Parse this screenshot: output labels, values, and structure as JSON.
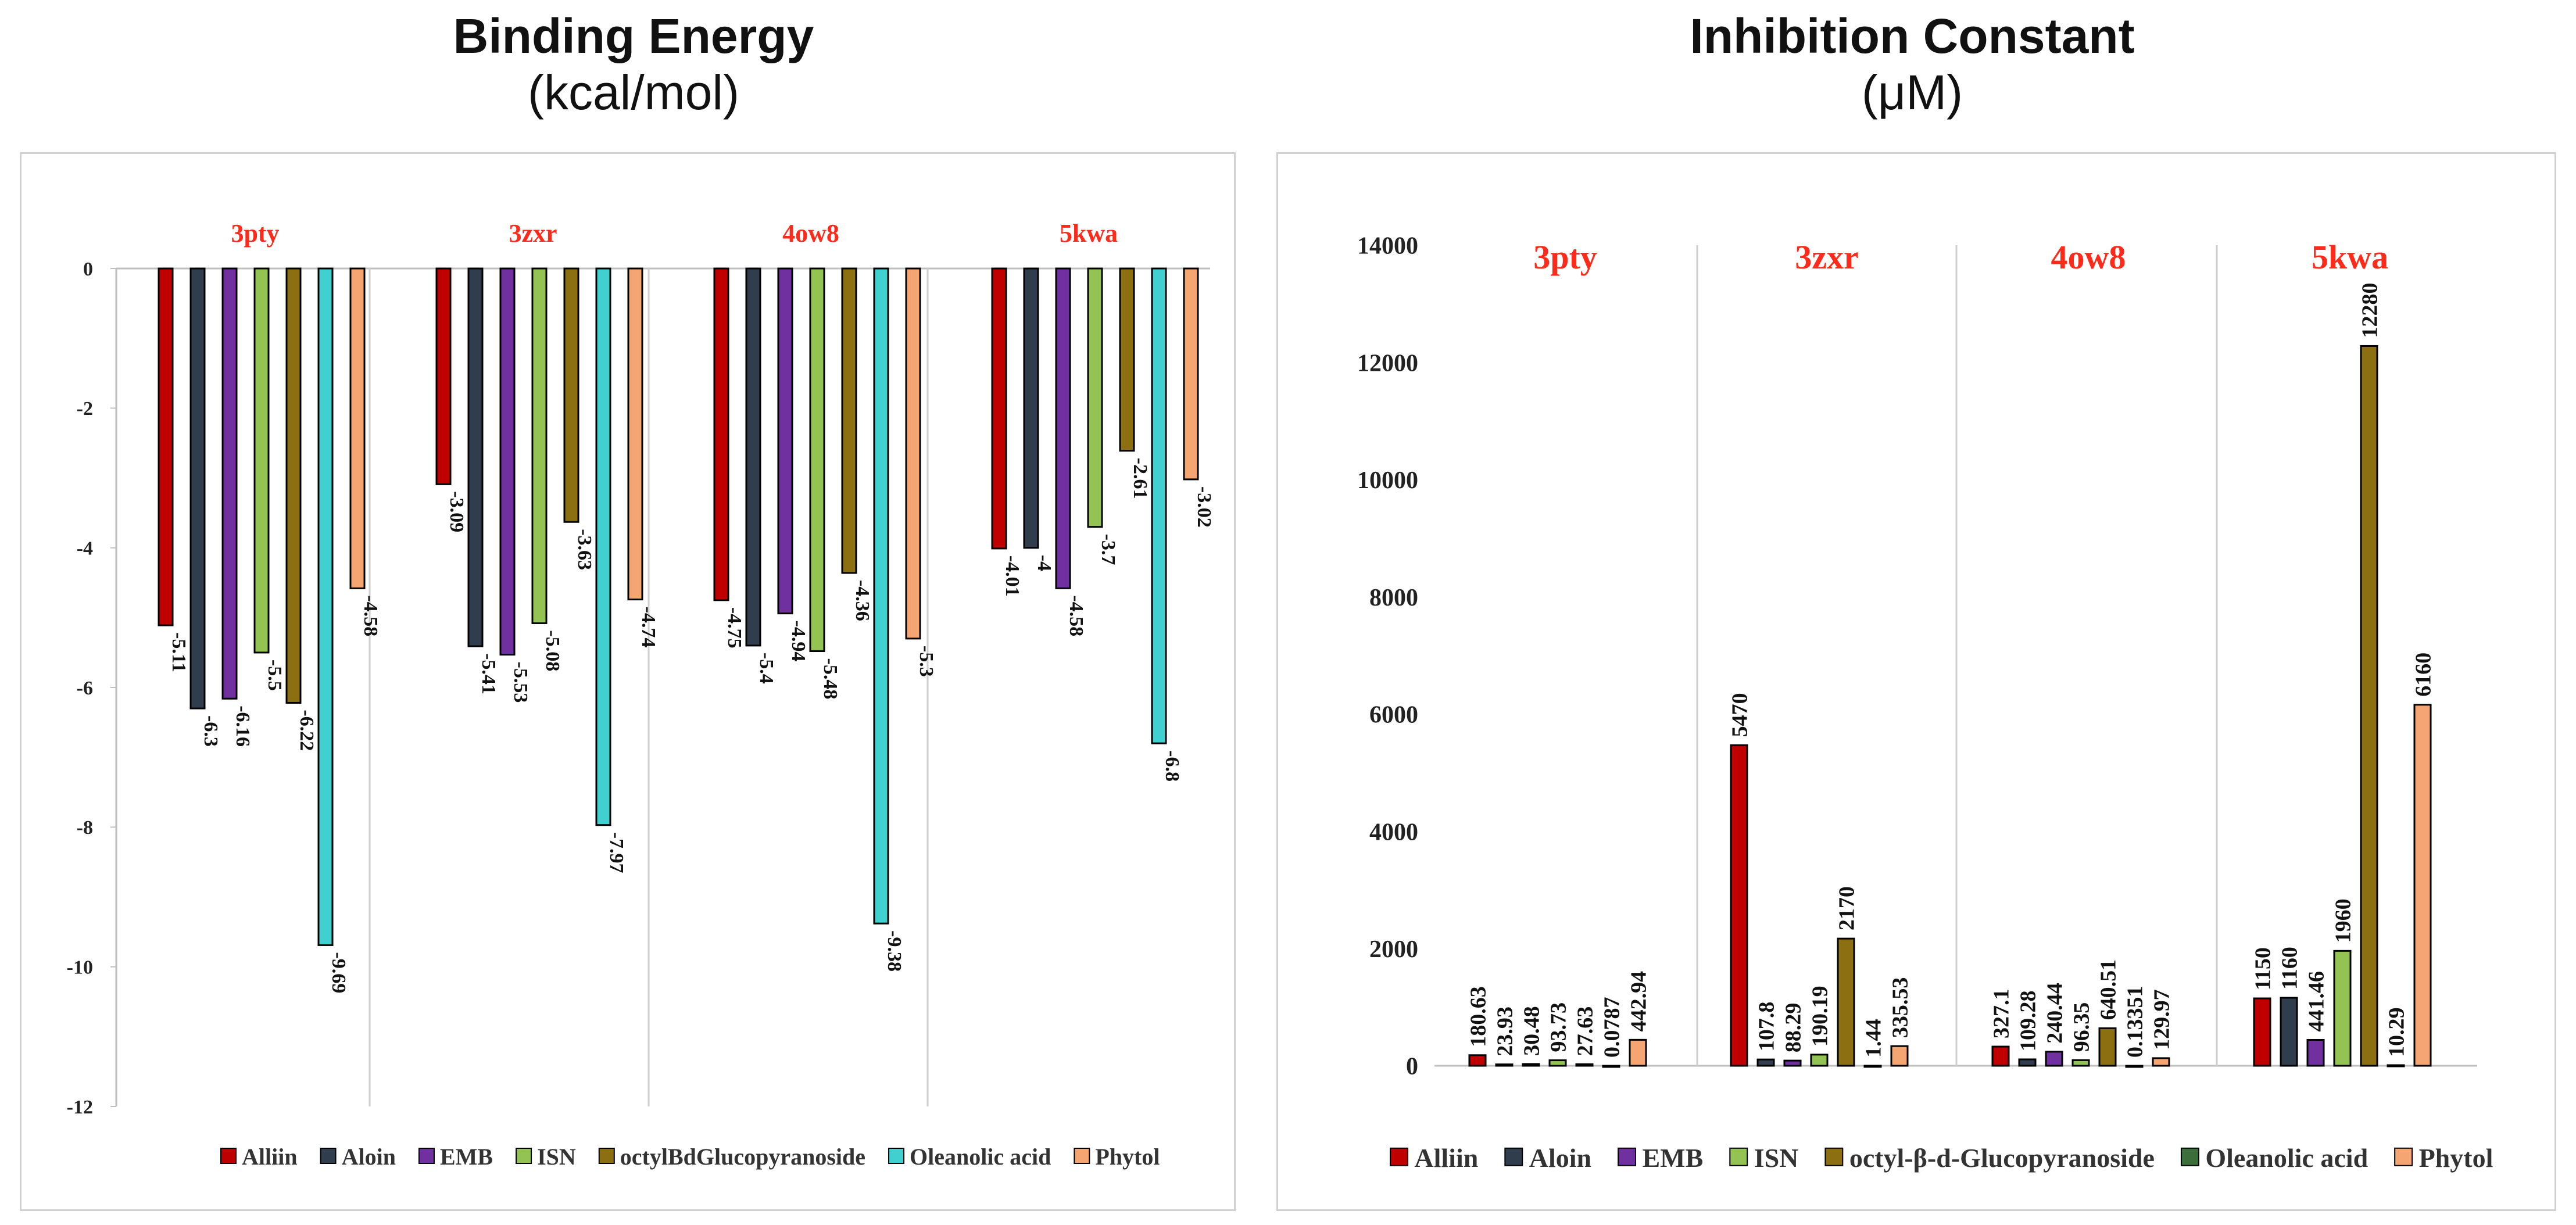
{
  "chart_data": [
    {
      "type": "bar",
      "title": "Binding Energy",
      "subtitle": "(kcal/mol)",
      "xlabel": "",
      "ylabel": "",
      "ylim": [
        -12,
        0
      ],
      "yticks": [
        0,
        -2,
        -4,
        -6,
        -8,
        -10,
        -12
      ],
      "groups": [
        "3pty",
        "3zxr",
        "4ow8",
        "5kwa"
      ],
      "legend_position": "bottom",
      "series": [
        {
          "name": "Alliin",
          "color": "#c00000",
          "values": [
            -5.11,
            -3.09,
            -4.75,
            -4.01
          ],
          "labels": [
            "-5.11",
            "-3.09",
            "-4.75",
            "-4.01"
          ]
        },
        {
          "name": "Aloin",
          "color": "#2f3d4c",
          "values": [
            -6.3,
            -5.41,
            -5.4,
            -4
          ],
          "labels": [
            "-6.3",
            "-5.41",
            "-5.4",
            "-4"
          ]
        },
        {
          "name": "EMB",
          "color": "#7030a0",
          "values": [
            -6.16,
            -5.53,
            -4.94,
            -4.58
          ],
          "labels": [
            "-6.16",
            "-5.53",
            "-4.94",
            "-4.58"
          ]
        },
        {
          "name": "ISN",
          "color": "#92c353",
          "values": [
            -5.5,
            -5.08,
            -5.48,
            -3.7
          ],
          "labels": [
            "-5.5",
            "-5.08",
            "-5.48",
            "-3.7"
          ]
        },
        {
          "name": "octylBdGlucopyranoside",
          "color": "#8b6f10",
          "values": [
            -6.22,
            -3.63,
            -4.36,
            -2.61
          ],
          "labels": [
            "-6.22",
            "-3.63",
            "-4.36",
            "-2.61"
          ]
        },
        {
          "name": "Oleanolic acid",
          "color": "#40d0d0",
          "values": [
            -9.69,
            -7.97,
            -9.38,
            -6.8
          ],
          "labels": [
            "-9.69",
            "-7.97",
            "-9.38",
            "-6.8"
          ]
        },
        {
          "name": "Phytol",
          "color": "#f4a571",
          "values": [
            -4.58,
            -4.74,
            -5.3,
            -3.02
          ],
          "labels": [
            "-4.58",
            "-4.74",
            "-5.3",
            "-3.02"
          ]
        }
      ]
    },
    {
      "type": "bar",
      "title": "Inhibition Constant",
      "subtitle": "(μM)",
      "xlabel": "",
      "ylabel": "",
      "ylim": [
        0,
        14000
      ],
      "yticks": [
        0,
        2000,
        4000,
        6000,
        8000,
        10000,
        12000,
        14000
      ],
      "groups": [
        "3pty",
        "3zxr",
        "4ow8",
        "5kwa"
      ],
      "legend_position": "bottom",
      "series": [
        {
          "name": "Alliin",
          "color": "#c00000",
          "values": [
            180.63,
            5470,
            327.1,
            1150
          ],
          "labels": [
            "180.63",
            "5470",
            "327.1",
            "1150"
          ]
        },
        {
          "name": "Aloin",
          "color": "#2f3d4c",
          "values": [
            23.93,
            107.8,
            109.28,
            1160
          ],
          "labels": [
            "23.93",
            "107.8",
            "109.28",
            "1160"
          ]
        },
        {
          "name": "EMB",
          "color": "#7030a0",
          "values": [
            30.48,
            88.29,
            240.44,
            441.46
          ],
          "labels": [
            "30.48",
            "88.29",
            "240.44",
            "441.46"
          ]
        },
        {
          "name": "ISN",
          "color": "#92c353",
          "values": [
            93.73,
            190.19,
            96.35,
            1960
          ],
          "labels": [
            "93.73",
            "190.19",
            "96.35",
            "1960"
          ]
        },
        {
          "name": "octyl-β-d-Glucopyranoside",
          "color": "#8b6f10",
          "values": [
            27.63,
            2170,
            640.51,
            12280
          ],
          "labels": [
            "27.63",
            "2170",
            "640.51",
            "12280"
          ]
        },
        {
          "name": "Oleanolic acid",
          "color": "#3c6e3c",
          "values": [
            0.0787,
            1.44,
            0.13351,
            10.29
          ],
          "labels": [
            "0.0787",
            "1.44",
            "0.13351",
            "10.29"
          ]
        },
        {
          "name": "Phytol",
          "color": "#f4a571",
          "values": [
            442.94,
            335.53,
            129.97,
            6160
          ],
          "labels": [
            "442.94",
            "335.53",
            "129.97",
            "6160"
          ]
        }
      ]
    }
  ]
}
